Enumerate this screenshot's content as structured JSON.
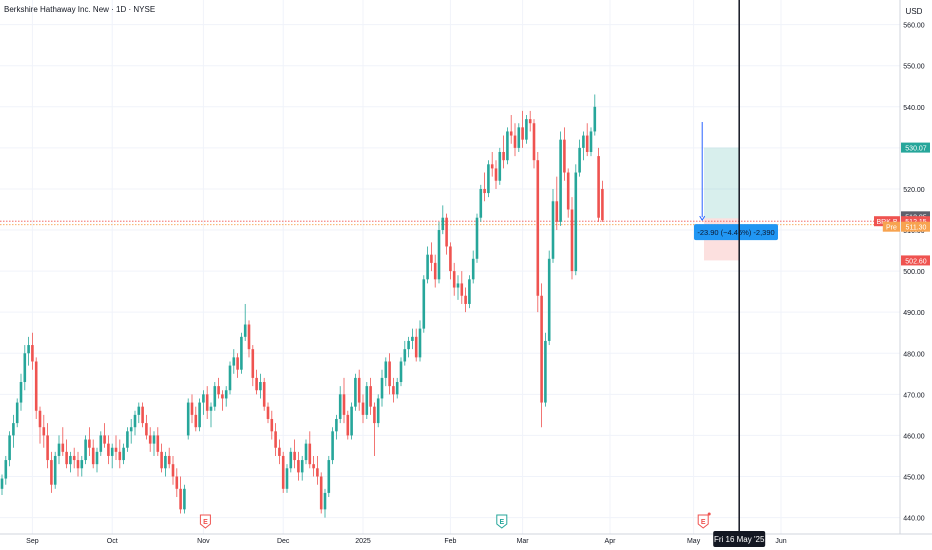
{
  "chart_data": {
    "type": "candlestick",
    "title": "Berkshire Hathaway Inc. New · 1D · NYSE",
    "currency": "USD",
    "y_ticks": [
      440,
      450,
      460,
      470,
      480,
      490,
      500,
      510,
      520,
      530,
      540,
      550,
      560
    ],
    "y_tick_labels": [
      "440.00",
      "450.00",
      "460.00",
      "470.00",
      "480.00",
      "490.00",
      "500.00",
      "510.00",
      "520.00",
      "530.00",
      "540.00",
      "550.00",
      "560.00"
    ],
    "ylim": [
      436,
      566
    ],
    "x_labels": [
      {
        "label": "Sep",
        "i": 8
      },
      {
        "label": "Oct",
        "i": 29
      },
      {
        "label": "Nov",
        "i": 53
      },
      {
        "label": "Dec",
        "i": 74
      },
      {
        "label": "2025",
        "i": 95
      },
      {
        "label": "Feb",
        "i": 118
      },
      {
        "label": "Mar",
        "i": 137
      },
      {
        "label": "Apr",
        "i": 160
      },
      {
        "label": "May",
        "i": 182
      },
      {
        "label": "Jun",
        "i": 205
      }
    ],
    "crosshair": {
      "i": 194,
      "label": "Fri 16 May '25"
    },
    "earnings_markers": [
      {
        "i": 53,
        "label": "E",
        "type": "past"
      },
      {
        "i": 131,
        "label": "E",
        "type": "upcoming"
      },
      {
        "i": 184,
        "label": "E",
        "type": "past"
      }
    ],
    "price_badges": [
      {
        "price": 530.07,
        "label": "530.07",
        "style": "teal"
      },
      {
        "price": 512.85,
        "label": "512.85",
        "style": "gray"
      },
      {
        "price": 512.15,
        "label": "512.15",
        "tag": "BRK.B",
        "style": "red"
      },
      {
        "price": 511.3,
        "label": "511.30",
        "tag": "Pre",
        "style": "orange"
      },
      {
        "price": 502.6,
        "label": "502.60",
        "style": "red"
      }
    ],
    "position": {
      "entry": 512.85,
      "target": 530.07,
      "stop": 502.6,
      "i_start": 185,
      "i_end": 194
    },
    "measure": {
      "label": "-23.90 (−4.46%) -2,390",
      "from": 536.3,
      "to": 512.4,
      "i": 184
    },
    "candles": [
      [
        447.0,
        450.5,
        445.5,
        449.5
      ],
      [
        449.5,
        455.0,
        448.0,
        454.0
      ],
      [
        454.0,
        461.0,
        452.5,
        460.0
      ],
      [
        460.0,
        465.0,
        457.0,
        463.0
      ],
      [
        463.0,
        469.0,
        462.0,
        468.0
      ],
      [
        468.0,
        475.0,
        466.0,
        473.0
      ],
      [
        473.0,
        482.0,
        471.0,
        480.0
      ],
      [
        480.0,
        484.0,
        477.0,
        482.0
      ],
      [
        482.0,
        485.0,
        476.0,
        478.0
      ],
      [
        478.0,
        479.0,
        464.0,
        466.0
      ],
      [
        466.0,
        467.0,
        458.0,
        462.0
      ],
      [
        462.0,
        465.0,
        457.0,
        460.0
      ],
      [
        460.0,
        463.0,
        452.0,
        454.0
      ],
      [
        454.0,
        456.0,
        446.0,
        448.0
      ],
      [
        448.0,
        456.0,
        447.0,
        455.0
      ],
      [
        455.0,
        460.0,
        453.0,
        458.0
      ],
      [
        458.0,
        462.0,
        455.0,
        456.0
      ],
      [
        456.0,
        459.0,
        452.0,
        453.0
      ],
      [
        453.0,
        456.0,
        451.0,
        455.0
      ],
      [
        455.0,
        457.0,
        452.0,
        454.0
      ],
      [
        454.0,
        456.0,
        450.0,
        452.0
      ],
      [
        452.0,
        455.0,
        450.0,
        454.0
      ],
      [
        454.0,
        460.0,
        453.0,
        459.0
      ],
      [
        459.0,
        462.0,
        455.0,
        457.0
      ],
      [
        457.0,
        459.0,
        452.0,
        453.0
      ],
      [
        453.0,
        457.0,
        451.0,
        456.0
      ],
      [
        456.0,
        461.0,
        455.0,
        460.0
      ],
      [
        460.0,
        463.0,
        457.0,
        458.0
      ],
      [
        458.0,
        460.0,
        453.0,
        455.0
      ],
      [
        455.0,
        458.0,
        452.0,
        457.0
      ],
      [
        457.0,
        460.0,
        454.0,
        456.0
      ],
      [
        456.0,
        459.0,
        452.0,
        454.0
      ],
      [
        454.0,
        458.0,
        453.0,
        457.0
      ],
      [
        457.0,
        462.0,
        456.0,
        461.0
      ],
      [
        461.0,
        464.0,
        458.0,
        462.0
      ],
      [
        462.0,
        466.0,
        460.0,
        465.0
      ],
      [
        465.0,
        468.0,
        463.0,
        467.0
      ],
      [
        467.0,
        468.0,
        462.0,
        463.0
      ],
      [
        463.0,
        465.0,
        459.0,
        460.0
      ],
      [
        460.0,
        462.0,
        456.0,
        458.0
      ],
      [
        458.0,
        461.0,
        455.0,
        460.0
      ],
      [
        460.0,
        462.0,
        455.0,
        456.0
      ],
      [
        456.0,
        458.0,
        451.0,
        452.0
      ],
      [
        452.0,
        456.0,
        450.0,
        455.0
      ],
      [
        455.0,
        457.0,
        452.0,
        453.0
      ],
      [
        453.0,
        455.0,
        448.0,
        450.0
      ],
      [
        450.0,
        452.0,
        445.0,
        447.0
      ],
      [
        447.0,
        450.0,
        441.0,
        442.0
      ],
      [
        442.0,
        448.0,
        441.0,
        447.0
      ],
      [
        460.0,
        469.0,
        459.0,
        468.0
      ],
      [
        468.0,
        470.0,
        463.0,
        465.0
      ],
      [
        465.0,
        467.0,
        461.0,
        462.0
      ],
      [
        462.0,
        469.0,
        461.0,
        468.0
      ],
      [
        468.0,
        471.0,
        465.0,
        470.0
      ],
      [
        470.0,
        472.0,
        464.0,
        466.0
      ],
      [
        466.0,
        468.0,
        462.0,
        467.0
      ],
      [
        467.0,
        473.0,
        466.0,
        472.0
      ],
      [
        472.0,
        474.0,
        469.0,
        470.0
      ],
      [
        470.0,
        471.0,
        466.0,
        469.0
      ],
      [
        469.0,
        472.0,
        467.0,
        471.0
      ],
      [
        471.0,
        478.0,
        470.0,
        477.0
      ],
      [
        477.0,
        481.0,
        475.0,
        479.0
      ],
      [
        479.0,
        480.0,
        474.0,
        476.0
      ],
      [
        476.0,
        485.0,
        475.0,
        484.0
      ],
      [
        484.0,
        492.0,
        483.0,
        487.0
      ],
      [
        487.0,
        488.0,
        479.0,
        481.0
      ],
      [
        481.0,
        482.0,
        472.0,
        474.0
      ],
      [
        474.0,
        476.0,
        470.0,
        471.0
      ],
      [
        471.0,
        475.0,
        469.0,
        473.0
      ],
      [
        473.0,
        474.0,
        466.0,
        467.0
      ],
      [
        467.0,
        468.0,
        463.0,
        464.0
      ],
      [
        464.0,
        466.0,
        459.0,
        461.0
      ],
      [
        461.0,
        463.0,
        455.0,
        457.0
      ],
      [
        457.0,
        459.0,
        453.0,
        455.0
      ],
      [
        455.0,
        456.0,
        446.0,
        447.0
      ],
      [
        447.0,
        453.0,
        446.0,
        452.0
      ],
      [
        452.0,
        457.0,
        451.0,
        456.0
      ],
      [
        456.0,
        459.0,
        452.0,
        454.0
      ],
      [
        454.0,
        456.0,
        449.0,
        451.0
      ],
      [
        451.0,
        455.0,
        449.0,
        454.0
      ],
      [
        454.0,
        459.0,
        453.0,
        458.0
      ],
      [
        458.0,
        461.0,
        452.0,
        453.0
      ],
      [
        453.0,
        455.0,
        450.0,
        452.0
      ],
      [
        452.0,
        455.0,
        448.0,
        450.0
      ],
      [
        450.0,
        451.0,
        441.0,
        442.0
      ],
      [
        442.0,
        447.0,
        440.0,
        446.0
      ],
      [
        446.0,
        455.0,
        445.0,
        454.0
      ],
      [
        454.0,
        462.0,
        453.0,
        461.0
      ],
      [
        461.0,
        465.0,
        459.0,
        464.0
      ],
      [
        464.0,
        472.0,
        463.0,
        470.0
      ],
      [
        470.0,
        474.0,
        463.0,
        465.0
      ],
      [
        465.0,
        466.0,
        459.0,
        460.0
      ],
      [
        460.0,
        468.0,
        459.0,
        467.0
      ],
      [
        467.0,
        475.0,
        466.0,
        474.0
      ],
      [
        474.0,
        476.0,
        466.0,
        468.0
      ],
      [
        468.0,
        470.0,
        463.0,
        465.0
      ],
      [
        465.0,
        473.0,
        464.0,
        472.0
      ],
      [
        472.0,
        474.0,
        465.0,
        467.0
      ],
      [
        467.0,
        468.0,
        455.0,
        463.0
      ],
      [
        463.0,
        470.0,
        462.0,
        469.0
      ],
      [
        469.0,
        476.0,
        467.0,
        474.0
      ],
      [
        474.0,
        479.0,
        472.0,
        478.0
      ],
      [
        478.0,
        480.0,
        470.0,
        472.0
      ],
      [
        472.0,
        474.0,
        468.0,
        470.0
      ],
      [
        470.0,
        474.0,
        469.0,
        473.0
      ],
      [
        473.0,
        479.0,
        472.0,
        478.0
      ],
      [
        478.0,
        483.0,
        477.0,
        481.0
      ],
      [
        481.0,
        484.0,
        479.0,
        483.0
      ],
      [
        483.0,
        486.0,
        481.0,
        484.0
      ],
      [
        484.0,
        486.0,
        478.0,
        479.0
      ],
      [
        479.0,
        488.0,
        478.0,
        486.0
      ],
      [
        486.0,
        499.0,
        485.0,
        498.0
      ],
      [
        498.0,
        506.0,
        497.0,
        504.0
      ],
      [
        504.0,
        507.0,
        500.0,
        502.0
      ],
      [
        502.0,
        504.0,
        496.0,
        498.0
      ],
      [
        498.0,
        512.0,
        497.0,
        510.0
      ],
      [
        510.0,
        516.0,
        509.0,
        513.0
      ],
      [
        513.0,
        514.0,
        504.0,
        506.0
      ],
      [
        506.0,
        507.0,
        498.0,
        500.0
      ],
      [
        500.0,
        502.0,
        494.0,
        496.0
      ],
      [
        496.0,
        499.0,
        493.0,
        497.0
      ],
      [
        497.0,
        500.0,
        492.0,
        494.0
      ],
      [
        494.0,
        496.0,
        490.0,
        492.0
      ],
      [
        492.0,
        499.0,
        491.0,
        498.0
      ],
      [
        498.0,
        505.0,
        497.0,
        503.0
      ],
      [
        503.0,
        514.0,
        502.0,
        513.0
      ],
      [
        513.0,
        521.0,
        512.0,
        520.0
      ],
      [
        520.0,
        524.0,
        517.0,
        519.0
      ],
      [
        519.0,
        527.0,
        518.0,
        526.0
      ],
      [
        526.0,
        529.0,
        523.0,
        525.0
      ],
      [
        525.0,
        527.0,
        520.0,
        522.0
      ],
      [
        522.0,
        530.0,
        521.0,
        529.0
      ],
      [
        529.0,
        533.0,
        525.0,
        527.0
      ],
      [
        527.0,
        535.0,
        526.0,
        534.0
      ],
      [
        534.0,
        538.0,
        531.0,
        533.0
      ],
      [
        533.0,
        536.0,
        528.0,
        530.0
      ],
      [
        530.0,
        536.0,
        529.0,
        535.0
      ],
      [
        535.0,
        539.0,
        530.0,
        532.0
      ],
      [
        532.0,
        538.0,
        531.0,
        537.0
      ],
      [
        537.0,
        539.0,
        534.0,
        536.0
      ],
      [
        536.0,
        537.0,
        525.0,
        527.0
      ],
      [
        527.0,
        529.0,
        490.0,
        494.0
      ],
      [
        494.0,
        497.0,
        462.0,
        468.0
      ],
      [
        468.0,
        485.0,
        467.0,
        483.0
      ],
      [
        483.0,
        505.0,
        482.0,
        503.0
      ],
      [
        503.0,
        520.0,
        502.0,
        517.0
      ],
      [
        517.0,
        523.0,
        510.0,
        512.0
      ],
      [
        512.0,
        534.0,
        511.0,
        532.0
      ],
      [
        532.0,
        535.0,
        522.0,
        524.0
      ],
      [
        524.0,
        525.0,
        513.0,
        515.0
      ],
      [
        515.0,
        518.0,
        498.0,
        500.0
      ],
      [
        500.0,
        526.0,
        499.0,
        524.0
      ],
      [
        524.0,
        532.0,
        523.0,
        530.0
      ],
      [
        530.0,
        534.0,
        527.0,
        533.0
      ],
      [
        533.0,
        536.0,
        528.0,
        529.0
      ],
      [
        529.0,
        535.0,
        528.0,
        534.0
      ],
      [
        534.0,
        543.0,
        533.0,
        540.0
      ],
      [
        528.0,
        530.0,
        512.0,
        513.0
      ],
      [
        520.0,
        522.0,
        512.0,
        512.4
      ]
    ]
  }
}
